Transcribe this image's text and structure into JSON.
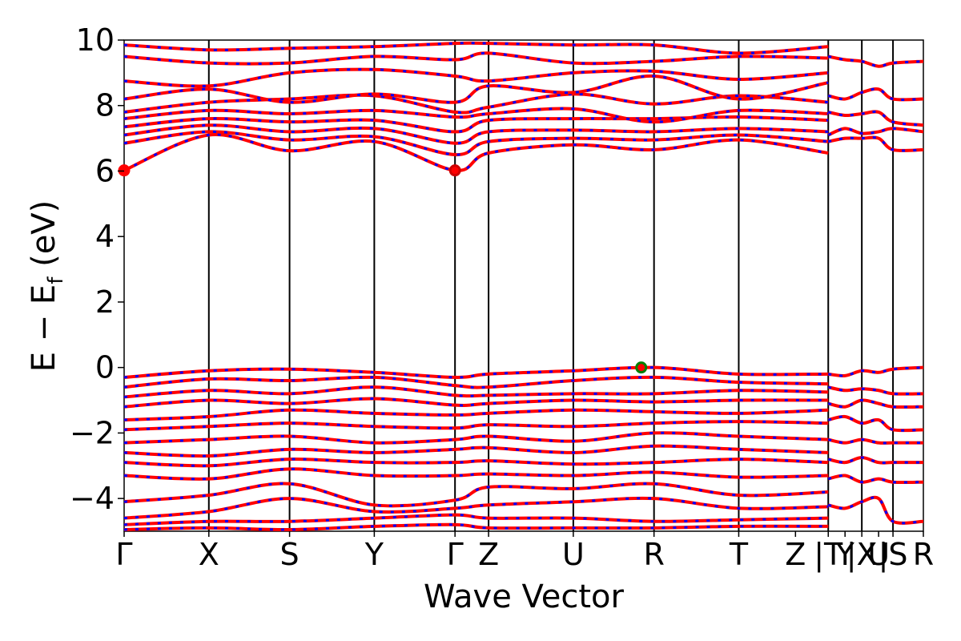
{
  "chart_data": {
    "type": "line",
    "title": "",
    "xlabel": "Wave Vector",
    "ylabel_main": "E − E",
    "ylabel_sub": "f",
    "ylabel_unit": " (eV)",
    "ylim": [
      -5,
      10
    ],
    "yticks": [
      -4,
      -2,
      0,
      2,
      4,
      6,
      8,
      10
    ],
    "ytick_labels": [
      "−4",
      "−2",
      "0",
      "2",
      "4",
      "6",
      "8",
      "10"
    ],
    "xlim": [
      0,
      1
    ],
    "kpoints": [
      {
        "label": "Γ",
        "x": 0.0,
        "line": false
      },
      {
        "label": "X",
        "x": 0.106,
        "line": true
      },
      {
        "label": "S",
        "x": 0.207,
        "line": true
      },
      {
        "label": "Y",
        "x": 0.313,
        "line": true
      },
      {
        "label": "Γ",
        "x": 0.414,
        "line": true
      },
      {
        "label": "Z",
        "x": 0.456,
        "line": true
      },
      {
        "label": "U",
        "x": 0.562,
        "line": true
      },
      {
        "label": "R",
        "x": 0.663,
        "line": true
      },
      {
        "label": "T",
        "x": 0.769,
        "line": true
      },
      {
        "label": "Z",
        "x": 0.84,
        "line": false
      },
      {
        "label": "|T",
        "x": 0.881,
        "line": true
      },
      {
        "label": "Y",
        "x": 0.902,
        "line": false
      },
      {
        "label": "|X",
        "x": 0.923,
        "line": true
      },
      {
        "label": "U",
        "x": 0.944,
        "line": false
      },
      {
        "label": "|S",
        "x": 0.962,
        "line": true
      },
      {
        "label": "R",
        "x": 1.0,
        "line": false
      }
    ],
    "bands_description": "spin-up (red) and spin-down (blue dashed) overlapping bands",
    "series": [
      {
        "name": "",
        "color": "#ff0000"
      },
      {
        "name": "",
        "color": "#0000ff"
      }
    ],
    "conduction_bands": [
      {
        "x": [
          0,
          0.106,
          0.207,
          0.313,
          0.414,
          0.456,
          0.562,
          0.663,
          0.769,
          0.881
        ],
        "y": [
          6.02,
          7.1,
          6.62,
          6.9,
          6.02,
          6.55,
          6.8,
          6.65,
          6.95,
          6.55
        ]
      },
      {
        "x": [
          0,
          0.106,
          0.207,
          0.313,
          0.414,
          0.456,
          0.562,
          0.663,
          0.769,
          0.881
        ],
        "y": [
          6.85,
          7.2,
          6.95,
          7.05,
          6.5,
          6.9,
          7.0,
          6.95,
          7.1,
          6.9
        ]
      },
      {
        "x": [
          0,
          0.106,
          0.207,
          0.313,
          0.414,
          0.456,
          0.562,
          0.663,
          0.769,
          0.881
        ],
        "y": [
          7.1,
          7.4,
          7.2,
          7.3,
          6.85,
          7.2,
          7.25,
          7.2,
          7.3,
          7.2
        ]
      },
      {
        "x": [
          0,
          0.106,
          0.207,
          0.313,
          0.414,
          0.456,
          0.562,
          0.663,
          0.769,
          0.881
        ],
        "y": [
          7.35,
          7.6,
          7.5,
          7.55,
          7.2,
          7.55,
          7.6,
          7.6,
          7.65,
          7.55
        ]
      },
      {
        "x": [
          0,
          0.106,
          0.207,
          0.313,
          0.414,
          0.456,
          0.562,
          0.663,
          0.769,
          0.881
        ],
        "y": [
          7.6,
          7.85,
          7.75,
          7.85,
          7.65,
          7.75,
          7.9,
          7.5,
          7.85,
          7.75
        ]
      },
      {
        "x": [
          0,
          0.106,
          0.207,
          0.313,
          0.414,
          0.456,
          0.562,
          0.663,
          0.769,
          0.881
        ],
        "y": [
          7.8,
          8.1,
          8.2,
          8.3,
          7.8,
          7.95,
          8.35,
          8.05,
          8.3,
          8.1
        ]
      },
      {
        "x": [
          0,
          0.106,
          0.207,
          0.313,
          0.414,
          0.456,
          0.562,
          0.663,
          0.769,
          0.881
        ],
        "y": [
          8.2,
          8.5,
          8.1,
          8.35,
          8.1,
          8.6,
          8.4,
          8.9,
          8.2,
          8.7
        ]
      },
      {
        "x": [
          0,
          0.106,
          0.207,
          0.313,
          0.414,
          0.456,
          0.562,
          0.663,
          0.769,
          0.881
        ],
        "y": [
          8.75,
          8.6,
          9.0,
          9.1,
          8.9,
          8.75,
          9.0,
          9.05,
          8.8,
          9.0
        ]
      },
      {
        "x": [
          0,
          0.106,
          0.207,
          0.313,
          0.414,
          0.456,
          0.562,
          0.663,
          0.769,
          0.881
        ],
        "y": [
          9.5,
          9.3,
          9.3,
          9.5,
          9.4,
          9.6,
          9.3,
          9.35,
          9.5,
          9.45
        ]
      },
      {
        "x": [
          0,
          0.106,
          0.207,
          0.313,
          0.414,
          0.456,
          0.562,
          0.663,
          0.769,
          0.881
        ],
        "y": [
          9.85,
          9.7,
          9.75,
          9.8,
          9.9,
          9.9,
          9.85,
          9.85,
          9.6,
          9.8
        ]
      }
    ],
    "valence_bands": [
      {
        "x": [
          0,
          0.106,
          0.207,
          0.313,
          0.414,
          0.456,
          0.562,
          0.663,
          0.769,
          0.881
        ],
        "y": [
          -0.3,
          -0.1,
          -0.05,
          -0.15,
          -0.3,
          -0.2,
          -0.1,
          0.0,
          -0.2,
          -0.2
        ]
      },
      {
        "x": [
          0,
          0.106,
          0.207,
          0.313,
          0.414,
          0.456,
          0.562,
          0.663,
          0.769,
          0.881
        ],
        "y": [
          -0.6,
          -0.35,
          -0.4,
          -0.3,
          -0.55,
          -0.6,
          -0.4,
          -0.3,
          -0.45,
          -0.5
        ]
      },
      {
        "x": [
          0,
          0.106,
          0.207,
          0.313,
          0.414,
          0.456,
          0.562,
          0.663,
          0.769,
          0.881
        ],
        "y": [
          -0.9,
          -0.7,
          -0.8,
          -0.6,
          -0.85,
          -0.85,
          -0.8,
          -0.8,
          -0.7,
          -0.75
        ]
      },
      {
        "x": [
          0,
          0.106,
          0.207,
          0.313,
          0.414,
          0.456,
          0.562,
          0.663,
          0.769,
          0.881
        ],
        "y": [
          -1.2,
          -1.0,
          -1.1,
          -0.95,
          -1.15,
          -1.1,
          -1.0,
          -1.05,
          -1.0,
          -1.0
        ]
      },
      {
        "x": [
          0,
          0.106,
          0.207,
          0.313,
          0.414,
          0.456,
          0.562,
          0.663,
          0.769,
          0.881
        ],
        "y": [
          -1.6,
          -1.5,
          -1.3,
          -1.4,
          -1.45,
          -1.4,
          -1.3,
          -1.35,
          -1.4,
          -1.3
        ]
      },
      {
        "x": [
          0,
          0.106,
          0.207,
          0.313,
          0.414,
          0.456,
          0.562,
          0.663,
          0.769,
          0.881
        ],
        "y": [
          -1.9,
          -1.8,
          -1.7,
          -1.8,
          -1.85,
          -1.75,
          -1.8,
          -1.7,
          -1.65,
          -1.7
        ]
      },
      {
        "x": [
          0,
          0.106,
          0.207,
          0.313,
          0.414,
          0.456,
          0.562,
          0.663,
          0.769,
          0.881
        ],
        "y": [
          -2.3,
          -2.2,
          -2.1,
          -2.3,
          -2.2,
          -2.1,
          -2.25,
          -2.0,
          -2.1,
          -2.2
        ]
      },
      {
        "x": [
          0,
          0.106,
          0.207,
          0.313,
          0.414,
          0.456,
          0.562,
          0.663,
          0.769,
          0.881
        ],
        "y": [
          -2.6,
          -2.7,
          -2.5,
          -2.6,
          -2.5,
          -2.45,
          -2.6,
          -2.4,
          -2.5,
          -2.6
        ]
      },
      {
        "x": [
          0,
          0.106,
          0.207,
          0.313,
          0.414,
          0.456,
          0.562,
          0.663,
          0.769,
          0.881
        ],
        "y": [
          -2.9,
          -3.0,
          -2.8,
          -2.9,
          -2.9,
          -2.85,
          -2.95,
          -2.9,
          -2.8,
          -2.9
        ]
      },
      {
        "x": [
          0,
          0.106,
          0.207,
          0.313,
          0.414,
          0.456,
          0.562,
          0.663,
          0.769,
          0.881
        ],
        "y": [
          -3.3,
          -3.4,
          -3.1,
          -3.3,
          -3.3,
          -3.25,
          -3.3,
          -3.2,
          -3.35,
          -3.3
        ]
      },
      {
        "x": [
          0,
          0.106,
          0.207,
          0.313,
          0.414,
          0.456,
          0.562,
          0.663,
          0.769,
          0.881
        ],
        "y": [
          -4.1,
          -3.9,
          -3.55,
          -4.2,
          -4.05,
          -3.65,
          -3.7,
          -3.55,
          -3.9,
          -3.8
        ]
      },
      {
        "x": [
          0,
          0.106,
          0.207,
          0.313,
          0.414,
          0.456,
          0.562,
          0.663,
          0.769,
          0.881
        ],
        "y": [
          -4.6,
          -4.4,
          -4.0,
          -4.4,
          -4.3,
          -4.2,
          -4.1,
          -4.0,
          -4.3,
          -4.25
        ]
      },
      {
        "x": [
          0,
          0.106,
          0.207,
          0.313,
          0.414,
          0.456,
          0.562,
          0.663,
          0.769,
          0.881
        ],
        "y": [
          -4.8,
          -4.7,
          -4.7,
          -4.6,
          -4.5,
          -4.6,
          -4.6,
          -4.7,
          -4.65,
          -4.6
        ]
      },
      {
        "x": [
          0,
          0.106,
          0.207,
          0.313,
          0.414,
          0.456,
          0.562,
          0.663,
          0.769,
          0.881
        ],
        "y": [
          -4.95,
          -4.9,
          -4.95,
          -4.85,
          -4.8,
          -4.9,
          -4.9,
          -4.9,
          -4.85,
          -4.85
        ]
      }
    ],
    "tail_bands": [
      {
        "x": [
          0.881,
          0.902,
          0.923,
          0.944,
          0.962,
          1.0
        ],
        "y": [
          9.5,
          9.4,
          9.35,
          9.2,
          9.3,
          9.35
        ]
      },
      {
        "x": [
          0.881,
          0.902,
          0.923,
          0.944,
          0.962,
          1.0
        ],
        "y": [
          8.3,
          8.2,
          8.4,
          8.5,
          8.2,
          8.2
        ]
      },
      {
        "x": [
          0.881,
          0.902,
          0.923,
          0.944,
          0.962,
          1.0
        ],
        "y": [
          7.8,
          7.7,
          7.75,
          7.8,
          7.5,
          7.4
        ]
      },
      {
        "x": [
          0.881,
          0.902,
          0.923,
          0.944,
          0.962,
          1.0
        ],
        "y": [
          7.1,
          7.3,
          7.15,
          7.2,
          7.3,
          7.2
        ]
      },
      {
        "x": [
          0.881,
          0.902,
          0.923,
          0.944,
          0.962,
          1.0
        ],
        "y": [
          6.9,
          7.0,
          7.0,
          7.0,
          6.65,
          6.65
        ]
      },
      {
        "x": [
          0.881,
          0.902,
          0.923,
          0.944,
          0.962,
          1.0
        ],
        "y": [
          -0.2,
          -0.25,
          -0.1,
          -0.15,
          -0.05,
          0.0
        ]
      },
      {
        "x": [
          0.881,
          0.902,
          0.923,
          0.944,
          0.962,
          1.0
        ],
        "y": [
          -0.6,
          -0.7,
          -0.65,
          -0.7,
          -0.8,
          -0.8
        ]
      },
      {
        "x": [
          0.881,
          0.902,
          0.923,
          0.944,
          0.962,
          1.0
        ],
        "y": [
          -1.1,
          -1.2,
          -1.0,
          -1.1,
          -1.2,
          -1.2
        ]
      },
      {
        "x": [
          0.881,
          0.902,
          0.923,
          0.944,
          0.962,
          1.0
        ],
        "y": [
          -1.6,
          -1.5,
          -1.7,
          -1.6,
          -1.9,
          -1.9
        ]
      },
      {
        "x": [
          0.881,
          0.902,
          0.923,
          0.944,
          0.962,
          1.0
        ],
        "y": [
          -2.2,
          -2.3,
          -2.2,
          -2.3,
          -2.3,
          -2.3
        ]
      },
      {
        "x": [
          0.881,
          0.902,
          0.923,
          0.944,
          0.962,
          1.0
        ],
        "y": [
          -2.8,
          -2.9,
          -2.75,
          -2.9,
          -2.9,
          -2.9
        ]
      },
      {
        "x": [
          0.881,
          0.902,
          0.923,
          0.944,
          0.962,
          1.0
        ],
        "y": [
          -3.4,
          -3.3,
          -3.5,
          -3.4,
          -3.5,
          -3.5
        ]
      },
      {
        "x": [
          0.881,
          0.902,
          0.923,
          0.944,
          0.962,
          1.0
        ],
        "y": [
          -4.2,
          -4.3,
          -4.1,
          -4.0,
          -4.7,
          -4.7
        ]
      }
    ],
    "markers": [
      {
        "name": "cbm",
        "x": 0.0,
        "y": 6.02,
        "fill": "#ff0000",
        "edge": "#ff0000"
      },
      {
        "name": "cbm",
        "x": 0.414,
        "y": 6.02,
        "fill": "#ff0000",
        "edge": "#cc0000"
      },
      {
        "name": "vbm",
        "x": 0.647,
        "y": 0.0,
        "fill": "#ff0000",
        "edge": "#008000"
      }
    ],
    "grid": false,
    "legend": "none"
  }
}
